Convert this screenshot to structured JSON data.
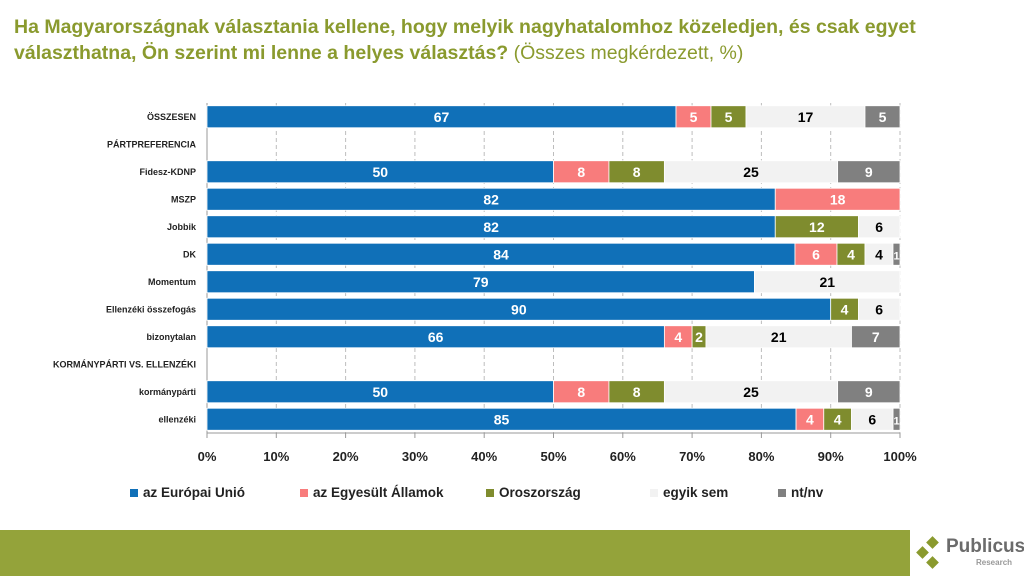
{
  "chart_data": {
    "type": "bar",
    "orientation": "horizontal",
    "stacked": "percent",
    "title": "Ha Magyarországnak választania kellene, hogy melyik nagyhatalomhoz közeledjen, és csak egyet választhatna, Ön szerint mi lenne a helyes választás?",
    "subtitle": "(Összes megkérdezett, %)",
    "categories": [
      "ÖSSZESEN",
      "PÁRTPREFERENCIA",
      "Fidesz-KDNP",
      "MSZP",
      "Jobbik",
      "DK",
      "Momentum",
      "Ellenzéki összefogás",
      "bizonytalan",
      "KORMÁNYPÁRTI VS. ELLENZÉKI",
      "kormánypárti",
      "ellenzéki"
    ],
    "series": [
      {
        "name": "az Európai Unió",
        "color": "#1070B8",
        "label_color": "#ffffff",
        "values": [
          67,
          null,
          50,
          82,
          82,
          84,
          79,
          90,
          66,
          null,
          50,
          85
        ]
      },
      {
        "name": "az Egyesült Államok",
        "color": "#F87C7C",
        "label_color": "#ffffff",
        "values": [
          5,
          null,
          8,
          18,
          0,
          6,
          0,
          0,
          4,
          null,
          8,
          4
        ]
      },
      {
        "name": "Oroszország",
        "color": "#7F8C2E",
        "label_color": "#ffffff",
        "values": [
          5,
          null,
          8,
          0,
          12,
          4,
          0,
          4,
          2,
          null,
          8,
          4
        ]
      },
      {
        "name": "egyik sem",
        "color": "#F2F2F2",
        "label_color": "#000000",
        "values": [
          17,
          null,
          25,
          0,
          6,
          4,
          21,
          6,
          21,
          null,
          25,
          6
        ]
      },
      {
        "name": "nt/nv",
        "color": "#808080",
        "label_color": "#ffffff",
        "values": [
          5,
          null,
          9,
          0,
          0,
          1,
          0,
          0,
          7,
          null,
          9,
          1
        ]
      }
    ],
    "xticks": [
      "0%",
      "10%",
      "20%",
      "30%",
      "40%",
      "50%",
      "60%",
      "70%",
      "80%",
      "90%",
      "100%"
    ],
    "xlim": [
      0,
      100
    ],
    "grid": true,
    "legend": "bottom"
  },
  "footer": {
    "logo_name": "Publicus",
    "logo_sub": "Research"
  }
}
